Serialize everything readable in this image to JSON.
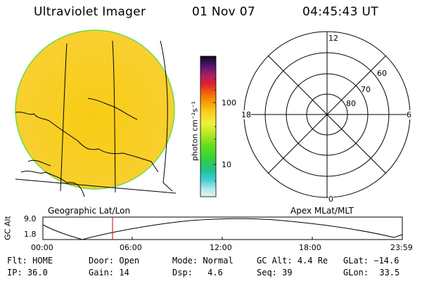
{
  "header": {
    "instrument": "Ultraviolet Imager",
    "date": "01 Nov 07",
    "time": "04:45:43 UT"
  },
  "image_panel": {
    "caption": "Geographic Lat/Lon"
  },
  "colorbar": {
    "unit_label": "photon cm⁻²s⁻¹",
    "tick_labels": [
      "100",
      "10"
    ]
  },
  "polar_plot": {
    "caption": "Apex MLat/MLT",
    "mlt_labels": {
      "top": "12",
      "left": "18",
      "right": "6",
      "bottom": "0"
    },
    "lat_labels": [
      "60",
      "70",
      "80"
    ]
  },
  "altitude_plot": {
    "ylabel": "GC Alt",
    "ytick_top": "9.0",
    "ytick_bottom": "1.8",
    "x_ticks": [
      "00:00",
      "06:00",
      "12:00",
      "18:00",
      "23:59"
    ],
    "marker_time": "04:45:43",
    "marker_color": "#cc0000"
  },
  "status": {
    "row1": [
      {
        "key": "Flt:",
        "value": "HOME"
      },
      {
        "key": "Door:",
        "value": "Open"
      },
      {
        "key": "Mode:",
        "value": "Normal"
      },
      {
        "key": "GC Alt:",
        "value": "4.4 Re"
      },
      {
        "key": "GLat:",
        "value": "−14.6"
      }
    ],
    "row2": [
      {
        "key": "IP:",
        "value": "36.0"
      },
      {
        "key": "Gain:",
        "value": "14"
      },
      {
        "key": "Dsp:",
        "value": "4.6"
      },
      {
        "key": "Seq:",
        "value": "39"
      },
      {
        "key": "GLon:",
        "value": "33.5"
      }
    ]
  },
  "colors": {
    "disk_fill": "#f5c800",
    "disk_rim": "#66dd44",
    "background": "#ffffff"
  }
}
